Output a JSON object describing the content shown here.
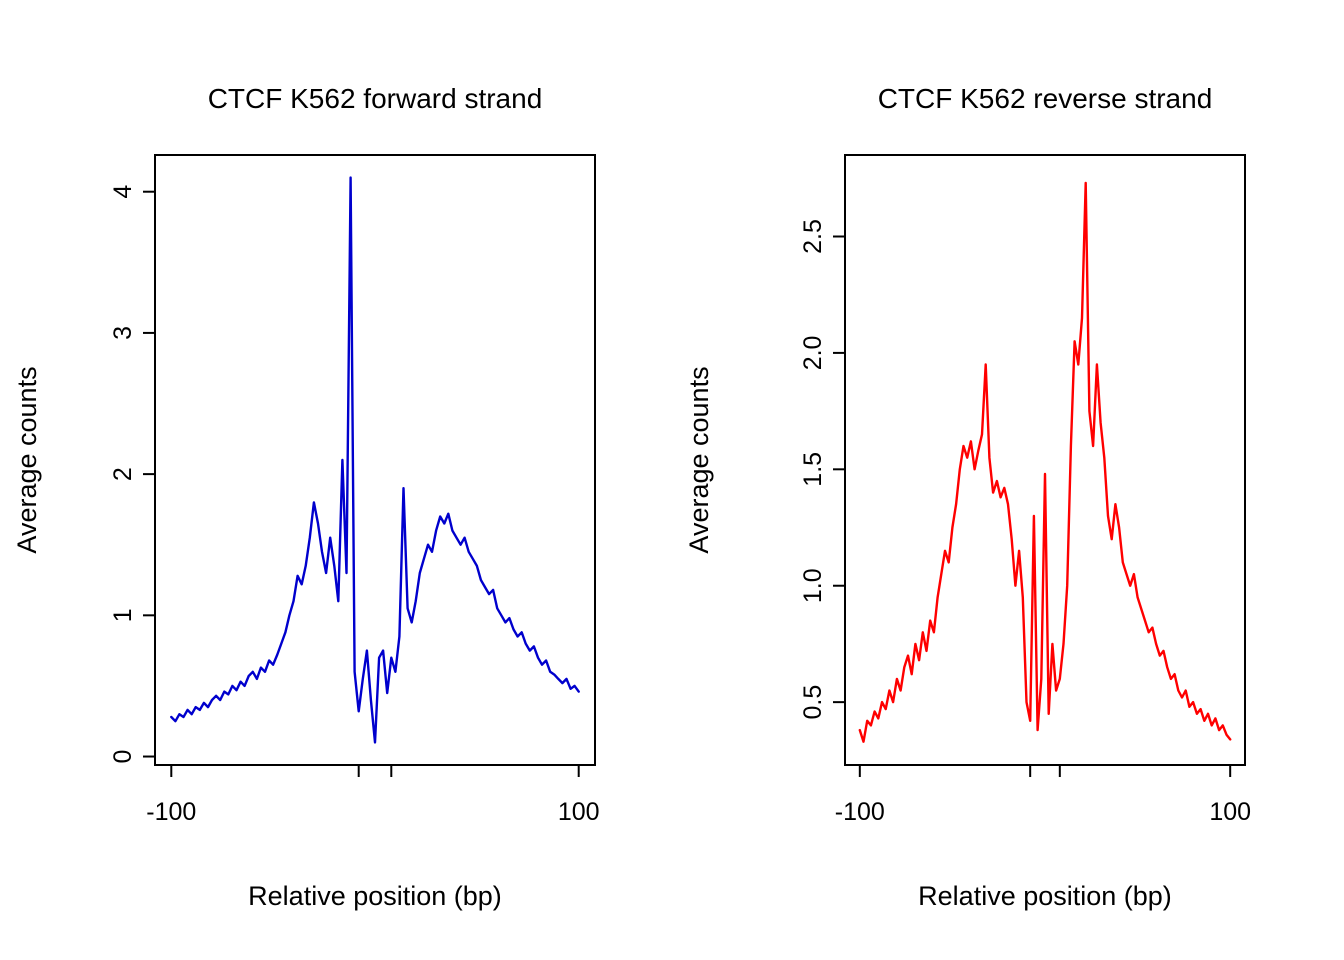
{
  "page": {
    "background": "#ffffff"
  },
  "chart_data": [
    {
      "type": "line",
      "title": "CTCF K562 forward strand",
      "xlabel": "Relative position (bp)",
      "ylabel": "Average counts",
      "color": "#0000cd",
      "xlim": [
        -108,
        108
      ],
      "ylim": [
        -0.06,
        4.26
      ],
      "x_ticks": [
        {
          "pos": -100,
          "label": "-100"
        },
        {
          "pos": -8,
          "label": ""
        },
        {
          "pos": 8,
          "label": ""
        },
        {
          "pos": 100,
          "label": "100"
        }
      ],
      "y_ticks": [
        {
          "pos": 0,
          "label": "0"
        },
        {
          "pos": 1,
          "label": "1"
        },
        {
          "pos": 2,
          "label": "2"
        },
        {
          "pos": 3,
          "label": "3"
        },
        {
          "pos": 4,
          "label": "4"
        }
      ],
      "x_start": -100,
      "x_step": 2,
      "values": [
        0.28,
        0.25,
        0.3,
        0.28,
        0.33,
        0.3,
        0.35,
        0.33,
        0.38,
        0.35,
        0.4,
        0.43,
        0.4,
        0.46,
        0.44,
        0.5,
        0.47,
        0.53,
        0.5,
        0.57,
        0.6,
        0.55,
        0.63,
        0.6,
        0.68,
        0.65,
        0.72,
        0.8,
        0.88,
        1.0,
        1.1,
        1.28,
        1.22,
        1.35,
        1.55,
        1.8,
        1.65,
        1.45,
        1.3,
        1.55,
        1.35,
        1.1,
        2.1,
        1.3,
        4.1,
        0.6,
        0.32,
        0.55,
        0.75,
        0.4,
        0.1,
        0.7,
        0.75,
        0.45,
        0.7,
        0.6,
        0.85,
        1.9,
        1.05,
        0.95,
        1.1,
        1.3,
        1.4,
        1.5,
        1.45,
        1.6,
        1.7,
        1.65,
        1.72,
        1.6,
        1.55,
        1.5,
        1.55,
        1.45,
        1.4,
        1.35,
        1.25,
        1.2,
        1.15,
        1.18,
        1.05,
        1.0,
        0.95,
        0.98,
        0.9,
        0.85,
        0.88,
        0.8,
        0.75,
        0.78,
        0.7,
        0.65,
        0.68,
        0.6,
        0.58,
        0.55,
        0.52,
        0.55,
        0.48,
        0.5,
        0.46
      ]
    },
    {
      "type": "line",
      "title": "CTCF K562 reverse strand",
      "xlabel": "Relative position (bp)",
      "ylabel": "Average counts",
      "color": "#ff0000",
      "xlim": [
        -108,
        108
      ],
      "ylim": [
        0.23,
        2.85
      ],
      "x_ticks": [
        {
          "pos": -100,
          "label": "-100"
        },
        {
          "pos": -8,
          "label": ""
        },
        {
          "pos": 8,
          "label": ""
        },
        {
          "pos": 100,
          "label": "100"
        }
      ],
      "y_ticks": [
        {
          "pos": 0.5,
          "label": "0.5"
        },
        {
          "pos": 1.0,
          "label": "1.0"
        },
        {
          "pos": 1.5,
          "label": "1.5"
        },
        {
          "pos": 2.0,
          "label": "2.0"
        },
        {
          "pos": 2.5,
          "label": "2.5"
        }
      ],
      "x_start": -100,
      "x_step": 2,
      "values": [
        0.38,
        0.33,
        0.42,
        0.4,
        0.46,
        0.43,
        0.5,
        0.47,
        0.55,
        0.5,
        0.6,
        0.55,
        0.65,
        0.7,
        0.62,
        0.75,
        0.68,
        0.8,
        0.72,
        0.85,
        0.8,
        0.95,
        1.05,
        1.15,
        1.1,
        1.25,
        1.35,
        1.5,
        1.6,
        1.55,
        1.62,
        1.5,
        1.58,
        1.65,
        1.95,
        1.55,
        1.4,
        1.45,
        1.38,
        1.42,
        1.35,
        1.2,
        1.0,
        1.15,
        0.95,
        0.5,
        0.42,
        1.3,
        0.38,
        0.6,
        1.48,
        0.45,
        0.75,
        0.55,
        0.6,
        0.75,
        1.0,
        1.6,
        2.05,
        1.95,
        2.15,
        2.73,
        1.75,
        1.6,
        1.95,
        1.7,
        1.55,
        1.3,
        1.2,
        1.35,
        1.25,
        1.1,
        1.05,
        1.0,
        1.05,
        0.95,
        0.9,
        0.85,
        0.8,
        0.82,
        0.75,
        0.7,
        0.72,
        0.65,
        0.6,
        0.62,
        0.55,
        0.52,
        0.55,
        0.48,
        0.5,
        0.45,
        0.47,
        0.42,
        0.45,
        0.4,
        0.43,
        0.38,
        0.4,
        0.36,
        0.34
      ]
    }
  ]
}
